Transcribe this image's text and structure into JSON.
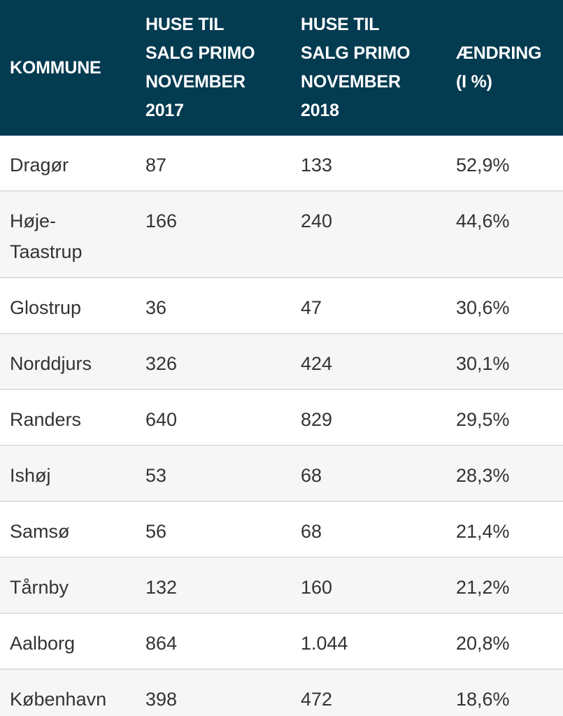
{
  "table": {
    "headers": [
      "KOMMUNE",
      "HUSE TIL\nSALG PRIMO\nNOVEMBER\n2017",
      "HUSE TIL\nSALG PRIMO\nNOVEMBER\n2018",
      "ÆNDRING\n(I %)"
    ],
    "rows": [
      [
        "Dragør",
        "87",
        "133",
        "52,9%"
      ],
      [
        "Høje-\nTaastrup",
        "166",
        "240",
        "44,6%"
      ],
      [
        "Glostrup",
        "36",
        "47",
        "30,6%"
      ],
      [
        "Norddjurs",
        "326",
        "424",
        "30,1%"
      ],
      [
        "Randers",
        "640",
        "829",
        "29,5%"
      ],
      [
        "Ishøj",
        "53",
        "68",
        "28,3%"
      ],
      [
        "Samsø",
        "56",
        "68",
        "21,4%"
      ],
      [
        "Tårnby",
        "132",
        "160",
        "21,2%"
      ],
      [
        "Aalborg",
        "864",
        "1.044",
        "20,8%"
      ],
      [
        "København",
        "398",
        "472",
        "18,6%"
      ]
    ]
  },
  "colors": {
    "header_bg": "#033b51",
    "header_text": "#ffffff",
    "row_alt_bg": "#f6f6f6",
    "divider": "#e0e0e0"
  }
}
